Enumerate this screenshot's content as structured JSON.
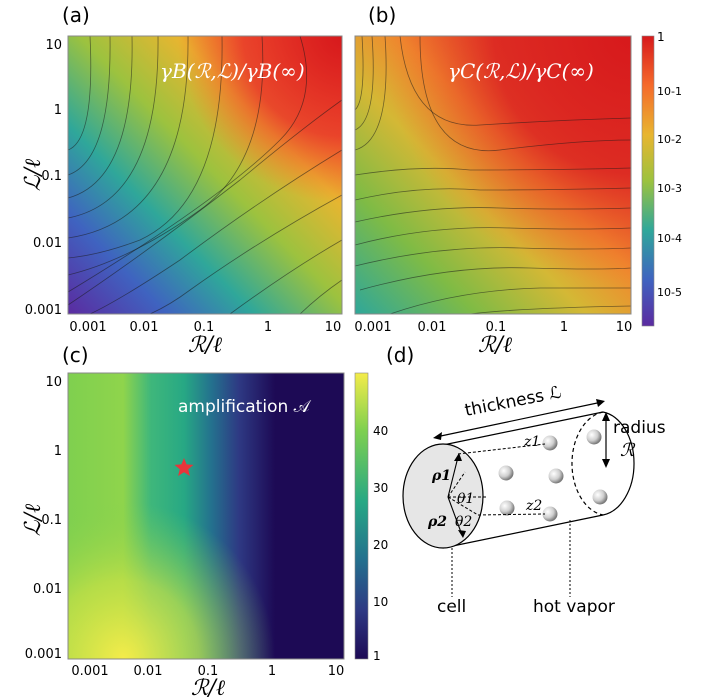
{
  "panels": {
    "a": {
      "label": "(a)",
      "formula": "γB(ℛ,ℒ)/γB(∞)"
    },
    "b": {
      "label": "(b)",
      "formula": "γC(ℛ,ℒ)/γC(∞)"
    },
    "c": {
      "label": "(c)",
      "annotation": "amplification 𝒜"
    },
    "d": {
      "label": "(d)"
    }
  },
  "axes": {
    "xlabel": "ℛ/ℓ",
    "ylabel": "ℒ/ℓ",
    "ticks": [
      "0.001",
      "0.01",
      "0.1",
      "1",
      "10"
    ]
  },
  "colorbar_top": {
    "ticks": [
      "1",
      "10-1",
      "10-2",
      "10-3",
      "10-4",
      "10-5"
    ],
    "colors": [
      "#d7191c",
      "#f56a2b",
      "#e8b530",
      "#9cc23f",
      "#2fa79a",
      "#3f63c0",
      "#5b2ba0"
    ]
  },
  "colorbar_bottom": {
    "ticks": [
      "40",
      "30",
      "20",
      "10",
      "1"
    ],
    "colors": [
      "#f4ec4a",
      "#7fd04f",
      "#27a884",
      "#24718e",
      "#2e3983",
      "#1d0a55"
    ]
  },
  "diagram": {
    "thickness": "thickness ℒ",
    "radius": "radius",
    "radius_symbol": "ℛ",
    "cell": "cell",
    "hot_vapor": "hot vapor",
    "z1": "z1",
    "z2": "z2",
    "rho1": "ρ1",
    "rho2": "ρ2",
    "theta1": "θ1",
    "theta2": "θ2"
  },
  "chart_data": [
    {
      "type": "heatmap",
      "title": "γB(ℛ,ℒ)/γB(∞)",
      "xlabel": "ℛ/ℓ",
      "ylabel": "ℒ/ℓ",
      "x_scale": "log",
      "y_scale": "log",
      "xlim": [
        0.001,
        10
      ],
      "ylim": [
        0.001,
        10
      ]
    },
    {
      "type": "heatmap",
      "title": "γC(ℛ,ℒ)/γC(∞)",
      "xlabel": "ℛ/ℓ",
      "ylabel": "ℒ/ℓ",
      "x_scale": "log",
      "y_scale": "log",
      "xlim": [
        0.001,
        10
      ],
      "ylim": [
        0.001,
        10
      ],
      "colorbar_range": [
        1e-05,
        1
      ]
    },
    {
      "type": "heatmap",
      "title": "amplification 𝒜",
      "xlabel": "ℛ/ℓ",
      "ylabel": "ℒ/ℓ",
      "x_scale": "log",
      "y_scale": "log",
      "xlim": [
        0.001,
        10
      ],
      "ylim": [
        0.001,
        10
      ],
      "colorbar_range": [
        1,
        48
      ],
      "marker": {
        "shape": "star",
        "x": 0.05,
        "y": 0.5
      }
    }
  ]
}
